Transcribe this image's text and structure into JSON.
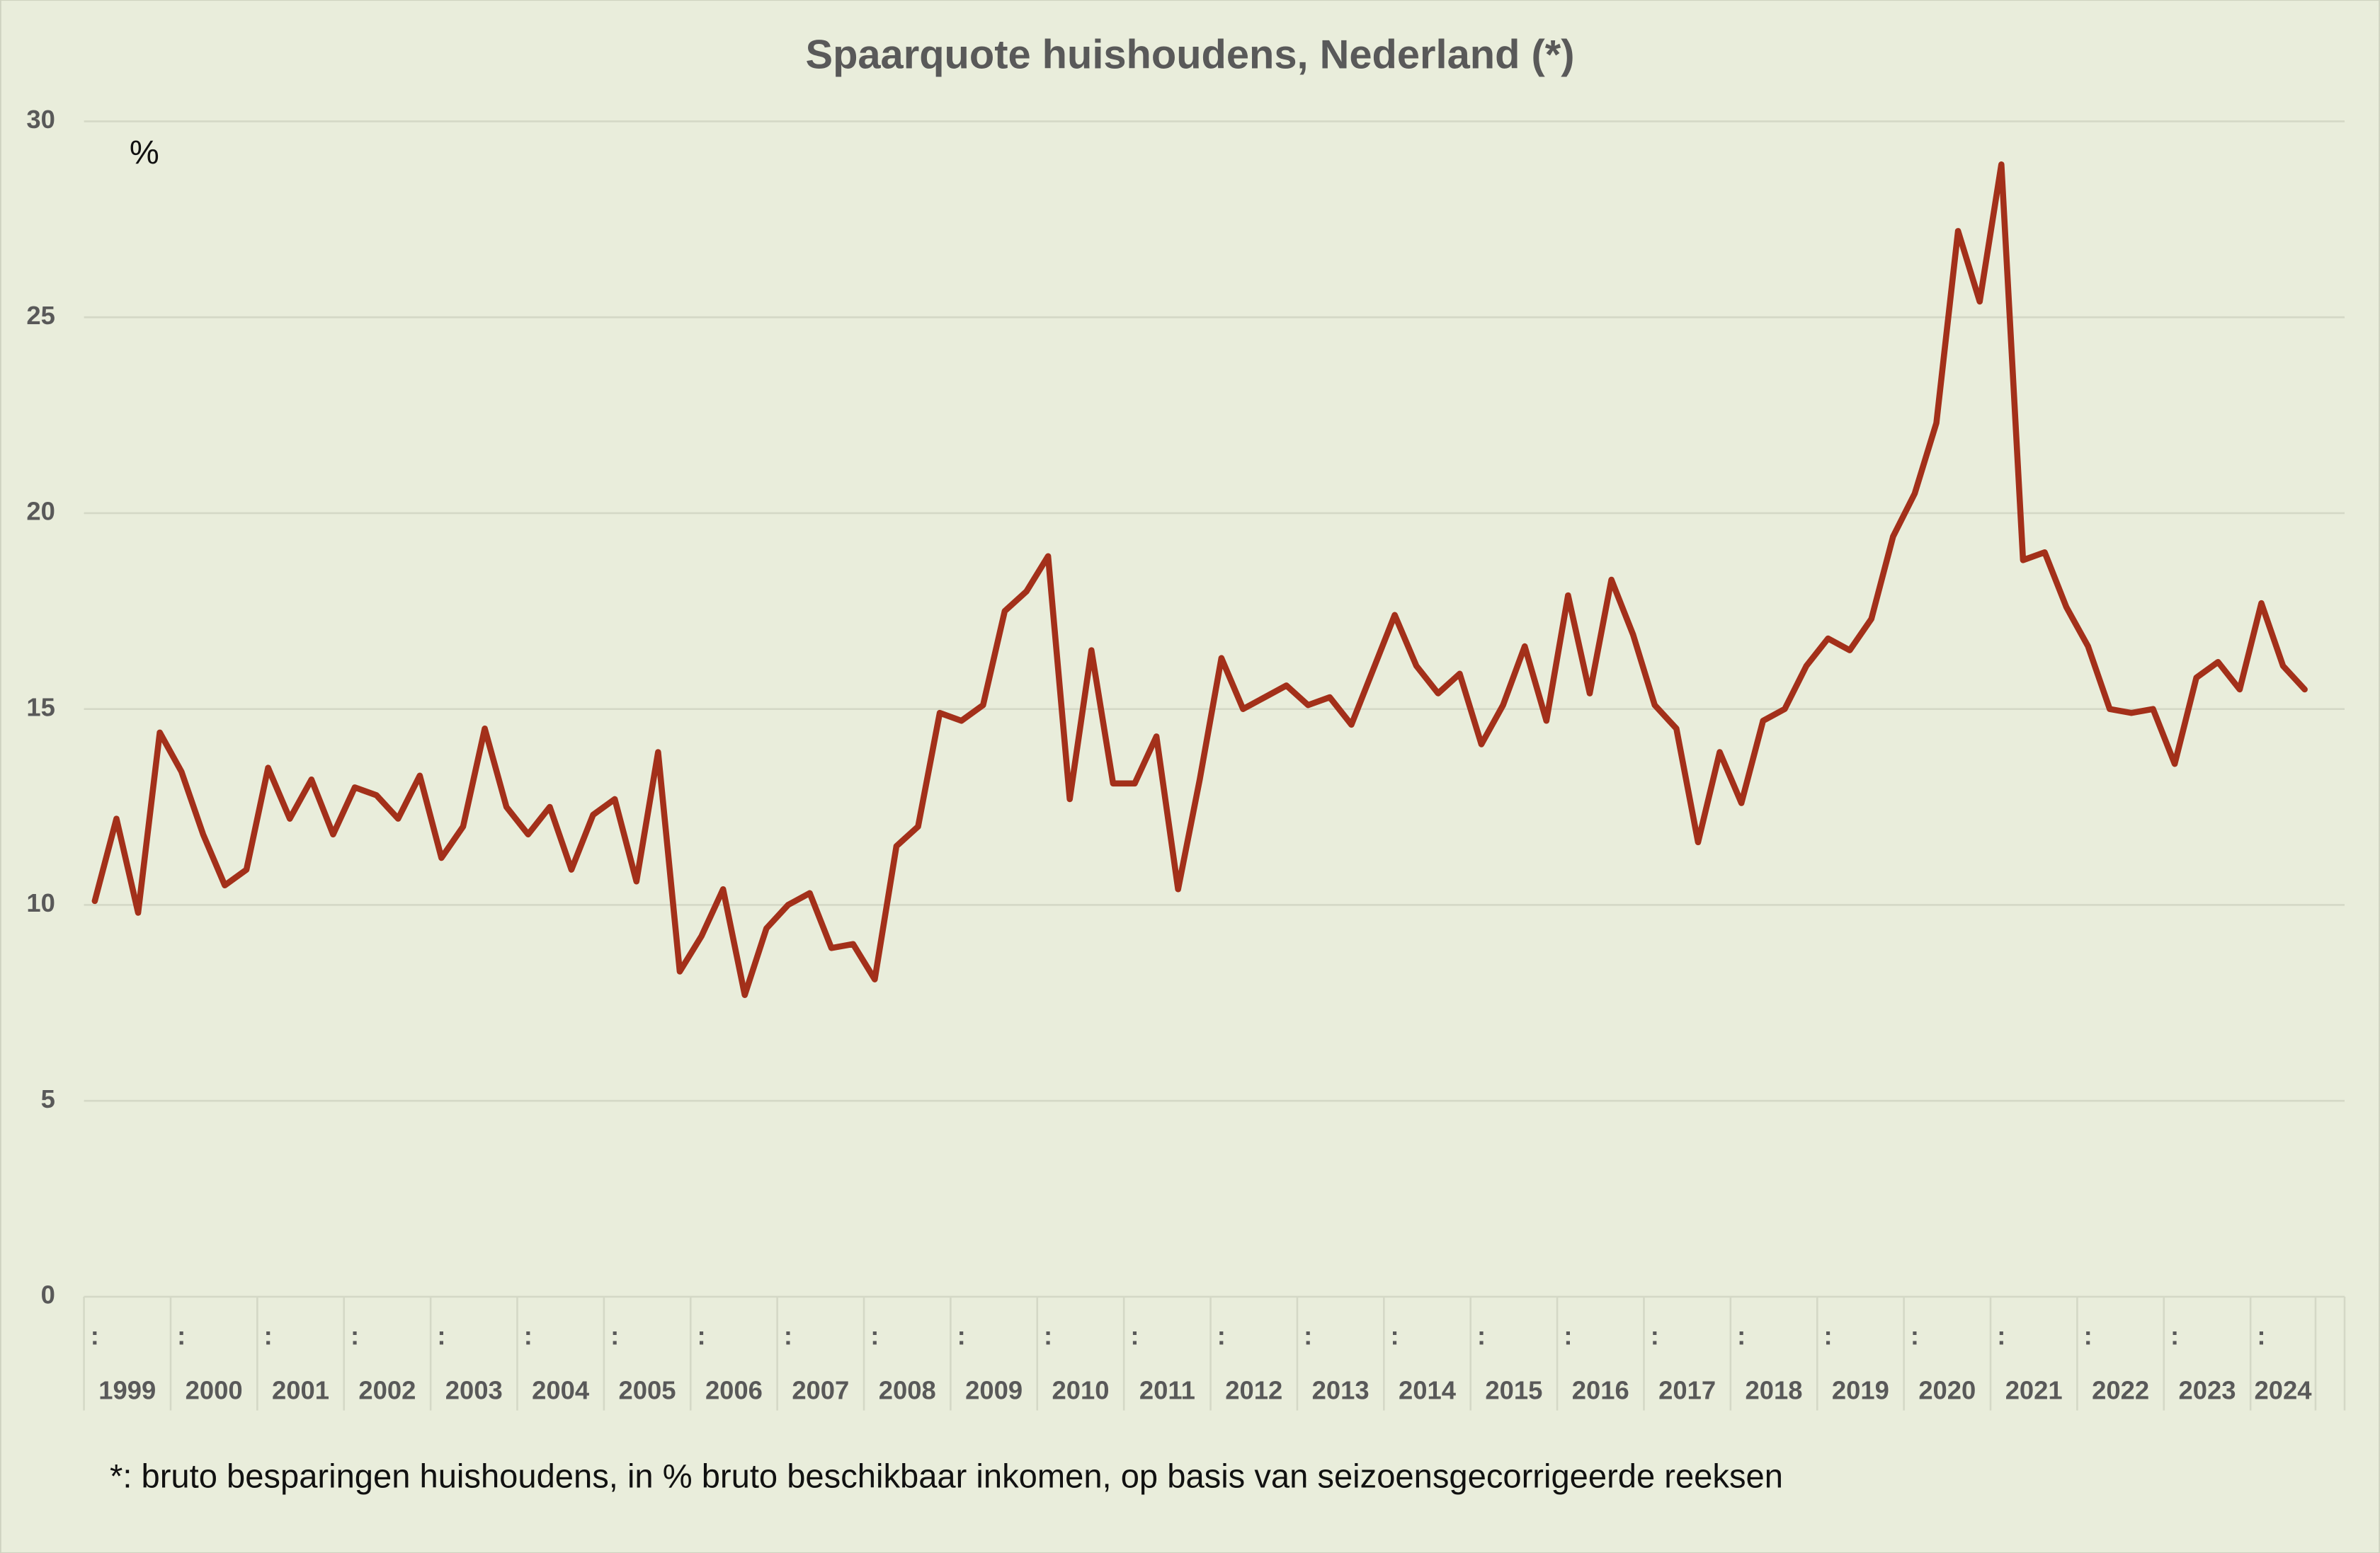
{
  "chart_data": {
    "type": "line",
    "title": "Spaarquote huishoudens, Nederland (*)",
    "unit_label": "%",
    "footnote": "*: bruto besparingen huishoudens, in % bruto beschikbaar inkomen, op basis van seizoensgecorrigeerde reeksen",
    "categories": [
      ":",
      null,
      null,
      null,
      ":",
      null,
      null,
      null,
      ":",
      null,
      null,
      null,
      ":",
      null,
      null,
      null,
      ":",
      null,
      null,
      null,
      ":",
      null,
      null,
      null,
      ":",
      null,
      null,
      null,
      ":",
      null,
      null,
      null,
      ":",
      null,
      null,
      null,
      ":",
      null,
      null,
      null,
      ":",
      null,
      null,
      null,
      ":",
      null,
      null,
      null,
      ":",
      null,
      null,
      null,
      ":",
      null,
      null,
      null,
      ":",
      null,
      null,
      null,
      ":",
      null,
      null,
      null,
      ":",
      null,
      null,
      null,
      ":",
      null,
      null,
      null,
      ":",
      null,
      null,
      null,
      ":",
      null,
      null,
      null,
      ":",
      null,
      null,
      null,
      ":",
      null,
      null,
      null,
      ":",
      null,
      null,
      null,
      ":",
      null,
      null,
      null,
      ":",
      null,
      null,
      null,
      ":",
      null,
      null
    ],
    "groups": [
      "1999",
      "2000",
      "2001",
      "2002",
      "2003",
      "2004",
      "2005",
      "2006",
      "2007",
      "2008",
      "2009",
      "2010",
      "2011",
      "2012",
      "2013",
      "2014",
      "2015",
      "2016",
      "2017",
      "2018",
      "2019",
      "2020",
      "2021",
      "2022",
      "2023",
      "2024"
    ],
    "values": [
      10.1,
      12.2,
      9.8,
      14.4,
      13.4,
      11.8,
      10.5,
      10.9,
      13.5,
      12.2,
      13.2,
      11.8,
      13.0,
      12.8,
      12.2,
      13.3,
      11.2,
      12.0,
      14.5,
      12.5,
      11.8,
      12.5,
      10.9,
      12.3,
      12.7,
      10.6,
      13.9,
      8.3,
      9.2,
      10.4,
      7.7,
      9.4,
      10.0,
      10.3,
      8.9,
      9.0,
      8.1,
      11.5,
      12.0,
      14.9,
      14.7,
      15.1,
      17.5,
      18.0,
      18.9,
      12.7,
      16.5,
      13.1,
      13.1,
      14.3,
      10.4,
      13.2,
      16.3,
      15.0,
      15.3,
      15.6,
      15.1,
      15.3,
      14.6,
      16.0,
      17.4,
      16.1,
      15.4,
      15.9,
      14.1,
      15.1,
      16.6,
      14.7,
      17.9,
      15.4,
      18.3,
      16.9,
      15.1,
      14.5,
      11.6,
      13.9,
      12.6,
      14.7,
      15.0,
      16.1,
      16.8,
      16.5,
      17.3,
      19.4,
      20.5,
      22.3,
      27.2,
      25.4,
      28.9,
      18.8,
      19.0,
      17.6,
      16.6,
      15.0,
      14.9,
      15.0,
      13.6,
      15.8,
      16.2,
      15.5,
      17.7,
      16.1,
      15.5
    ],
    "color": "#a3301a",
    "ylim": [
      0,
      30
    ],
    "yticks": [
      0,
      5,
      10,
      15,
      20,
      25,
      30
    ],
    "grid": true
  }
}
